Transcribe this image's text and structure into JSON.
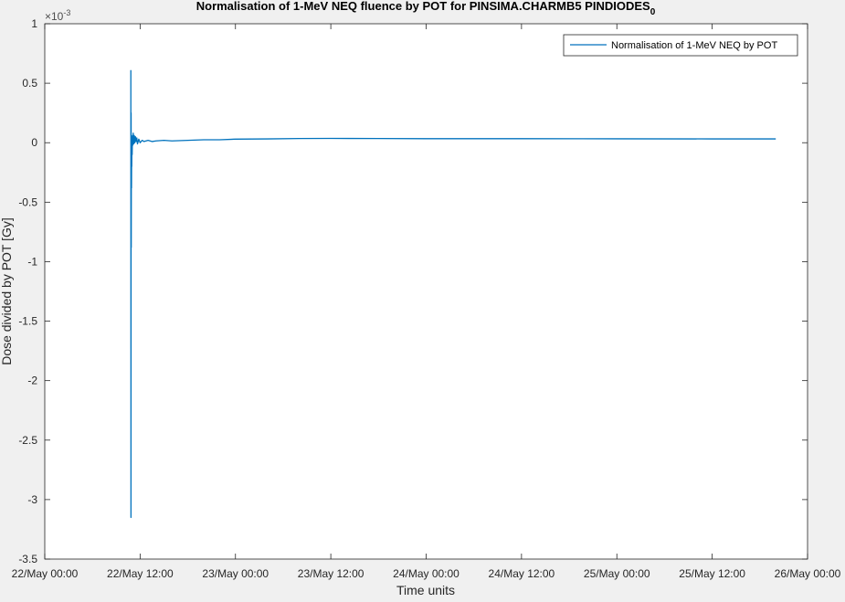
{
  "chart_data": {
    "type": "line",
    "title": "Normalisation of 1-MeV NEQ fluence by POT for PINSIMA.CHARMB5 PINDIODES",
    "title_subscript": "0",
    "xlabel": "Time units",
    "ylabel": "Dose divided by POT [Gy]",
    "y_exponent_label": "×10",
    "y_exponent_value": "-3",
    "xlim": [
      "2018-05-22T00:00",
      "2018-05-26T00:00"
    ],
    "ylim": [
      -3.5,
      1
    ],
    "x_ticks": [
      "2018-05-22T00:00",
      "2018-05-22T12:00",
      "2018-05-23T00:00",
      "2018-05-23T12:00",
      "2018-05-24T00:00",
      "2018-05-24T12:00",
      "2018-05-25T00:00",
      "2018-05-25T12:00",
      "2018-05-26T00:00"
    ],
    "x_tick_labels": [
      "22/May 00:00",
      "22/May 12:00",
      "23/May 00:00",
      "23/May 12:00",
      "24/May 00:00",
      "24/May 12:00",
      "25/May 00:00",
      "25/May 12:00",
      "26/May 00:00"
    ],
    "y_ticks": [
      1,
      0.5,
      0,
      -0.5,
      -1,
      -1.5,
      -2,
      -2.5,
      -3,
      -3.5
    ],
    "y_tick_labels": [
      "1",
      "0.5",
      "0",
      "-0.5",
      "-1",
      "-1.5",
      "-2",
      "-2.5",
      "-3",
      "-3.5"
    ],
    "grid": false,
    "legend_position": "top-right",
    "series": [
      {
        "name": "Normalisation of 1-MeV NEQ by POT",
        "color": "#0072bd",
        "x": [
          "2018-05-22T10:50",
          "2018-05-22T10:51",
          "2018-05-22T10:52",
          "2018-05-22T10:53",
          "2018-05-22T10:54",
          "2018-05-22T10:55",
          "2018-05-22T10:56",
          "2018-05-22T10:57",
          "2018-05-22T10:58",
          "2018-05-22T11:00",
          "2018-05-22T11:02",
          "2018-05-22T11:05",
          "2018-05-22T11:08",
          "2018-05-22T11:12",
          "2018-05-22T11:16",
          "2018-05-22T11:20",
          "2018-05-22T11:25",
          "2018-05-22T11:30",
          "2018-05-22T11:35",
          "2018-05-22T11:40",
          "2018-05-22T11:50",
          "2018-05-22T12:00",
          "2018-05-22T12:15",
          "2018-05-22T12:30",
          "2018-05-22T13:00",
          "2018-05-22T13:30",
          "2018-05-22T14:00",
          "2018-05-22T15:00",
          "2018-05-22T16:00",
          "2018-05-22T18:00",
          "2018-05-22T20:00",
          "2018-05-22T22:00",
          "2018-05-23T00:00",
          "2018-05-23T04:00",
          "2018-05-23T08:00",
          "2018-05-23T12:00",
          "2018-05-23T18:00",
          "2018-05-24T00:00",
          "2018-05-24T12:00",
          "2018-05-25T00:00",
          "2018-05-25T12:00",
          "2018-05-25T20:00"
        ],
        "values": [
          0.61,
          -3.15,
          0.25,
          -0.88,
          0.05,
          -0.38,
          -0.05,
          -0.2,
          0.02,
          -0.1,
          0.06,
          -0.02,
          0.08,
          -0.01,
          0.06,
          0.0,
          0.05,
          0.01,
          0.04,
          -0.01,
          0.03,
          0.0,
          0.02,
          0.01,
          0.02,
          0.01,
          0.015,
          0.02,
          0.015,
          0.02,
          0.025,
          0.025,
          0.03,
          0.032,
          0.035,
          0.036,
          0.035,
          0.034,
          0.034,
          0.033,
          0.032,
          0.032
        ]
      }
    ]
  }
}
